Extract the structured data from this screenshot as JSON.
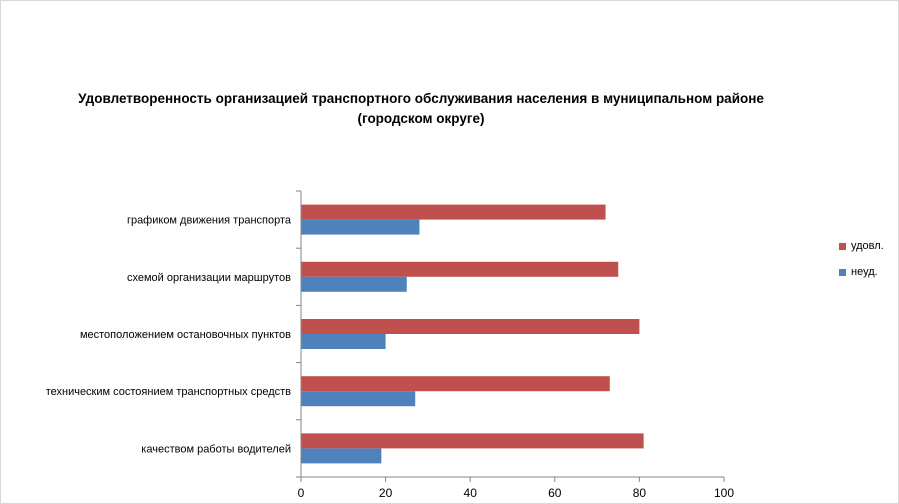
{
  "chart_data": {
    "type": "bar",
    "orientation": "horizontal",
    "title_line1": "Удовлетворенность организацией транспортного обслуживания населения в муниципальном районе",
    "title_line2": "(городском округе)",
    "categories": [
      "графиком движения транспорта",
      "схемой организации маршрутов",
      "местоположением остановочных пунктов",
      "техническим состоянием транспортных средств",
      "качеством работы водителей"
    ],
    "series": [
      {
        "name": "удовл.",
        "color": "#c0504d",
        "values": [
          72,
          75,
          80,
          73,
          81
        ]
      },
      {
        "name": "неуд.",
        "color": "#4f81bd",
        "values": [
          28,
          25,
          20,
          27,
          19
        ]
      }
    ],
    "xlim": [
      0,
      100
    ],
    "xticks": [
      0,
      20,
      40,
      60,
      80,
      100
    ],
    "legend_position": "right"
  }
}
